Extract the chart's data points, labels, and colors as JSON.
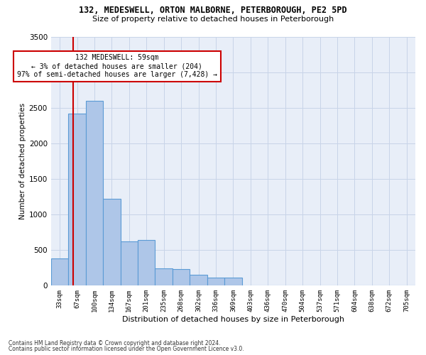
{
  "title_line1": "132, MEDESWELL, ORTON MALBORNE, PETERBOROUGH, PE2 5PD",
  "title_line2": "Size of property relative to detached houses in Peterborough",
  "xlabel": "Distribution of detached houses by size in Peterborough",
  "ylabel": "Number of detached properties",
  "footnote1": "Contains HM Land Registry data © Crown copyright and database right 2024.",
  "footnote2": "Contains public sector information licensed under the Open Government Licence v3.0.",
  "bar_labels": [
    "33sqm",
    "67sqm",
    "100sqm",
    "134sqm",
    "167sqm",
    "201sqm",
    "235sqm",
    "268sqm",
    "302sqm",
    "336sqm",
    "369sqm",
    "403sqm",
    "436sqm",
    "470sqm",
    "504sqm",
    "537sqm",
    "571sqm",
    "604sqm",
    "638sqm",
    "672sqm",
    "705sqm"
  ],
  "bar_values": [
    380,
    2420,
    2600,
    1220,
    620,
    640,
    240,
    235,
    150,
    115,
    110,
    0,
    0,
    0,
    0,
    0,
    0,
    0,
    0,
    0,
    0
  ],
  "bar_color": "#aec6e8",
  "bar_edge_color": "#5b9bd5",
  "ylim": [
    0,
    3500
  ],
  "yticks": [
    0,
    500,
    1000,
    1500,
    2000,
    2500,
    3000,
    3500
  ],
  "grid_color": "#c8d4e8",
  "bg_color": "#e8eef8",
  "marker_label": "132 MEDESWELL: 59sqm",
  "marker_sub1": "← 3% of detached houses are smaller (204)",
  "marker_sub2": "97% of semi-detached houses are larger (7,428) →",
  "marker_line_color": "#cc0000",
  "annotation_box_color": "#cc0000",
  "n_bars": 21
}
